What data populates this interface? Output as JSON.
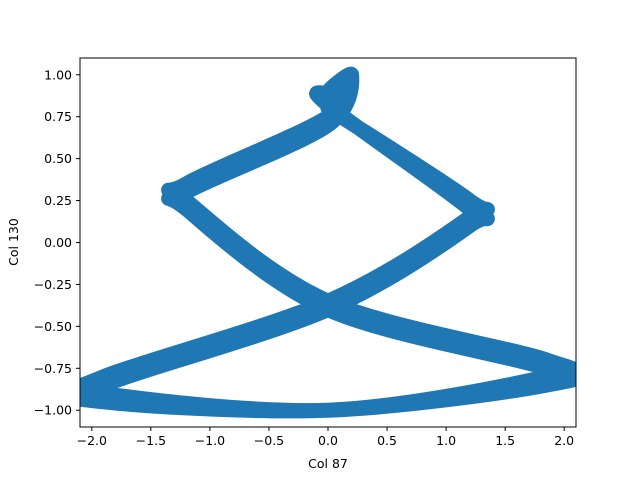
{
  "chart_data": {
    "type": "line",
    "title": "",
    "xlabel": "Col 87",
    "ylabel": "Col 130",
    "xlim": [
      -2.1,
      2.1
    ],
    "ylim": [
      -1.1,
      1.1
    ],
    "xticks": [
      -2.0,
      -1.5,
      -1.0,
      -0.5,
      0.0,
      0.5,
      1.0,
      1.5,
      2.0
    ],
    "xtick_labels": [
      "−2.0",
      "−1.5",
      "−1.0",
      "−0.5",
      "0.0",
      "0.5",
      "1.0",
      "1.5",
      "2.0"
    ],
    "yticks": [
      1.0,
      0.75,
      0.5,
      0.25,
      0.0,
      -0.25,
      -0.5,
      -0.75,
      -1.0
    ],
    "ytick_labels": [
      "1.00",
      "0.75",
      "0.50",
      "0.25",
      "0.00",
      "−0.25",
      "−0.50",
      "−0.75",
      "−1.00"
    ],
    "grid": false,
    "legend": "none",
    "color": "#1f77b4",
    "series": [
      {
        "x": [
          0.0,
          1.2,
          1.2,
          0.0,
          -1.9,
          -1.9,
          0.0,
          1.85,
          1.85,
          0.0,
          -1.2,
          -1.2,
          0.0,
          0.2,
          0.0,
          0.0,
          1.2,
          1.2,
          0.0,
          -1.9,
          -1.9,
          0.0,
          1.85,
          1.85,
          0.0,
          -1.2,
          -1.2,
          0.0,
          0.2,
          0.0
        ],
        "y": [
          0.8,
          0.25,
          0.15,
          -0.35,
          -0.8,
          -0.9,
          -1.0,
          -0.8,
          -0.7,
          -0.35,
          0.25,
          0.35,
          0.75,
          1.0,
          0.9,
          0.82,
          0.2,
          0.1,
          -0.4,
          -0.85,
          -0.95,
          -1.0,
          -0.85,
          -0.75,
          -0.4,
          0.2,
          0.3,
          0.7,
          1.0,
          0.8
        ]
      }
    ]
  }
}
